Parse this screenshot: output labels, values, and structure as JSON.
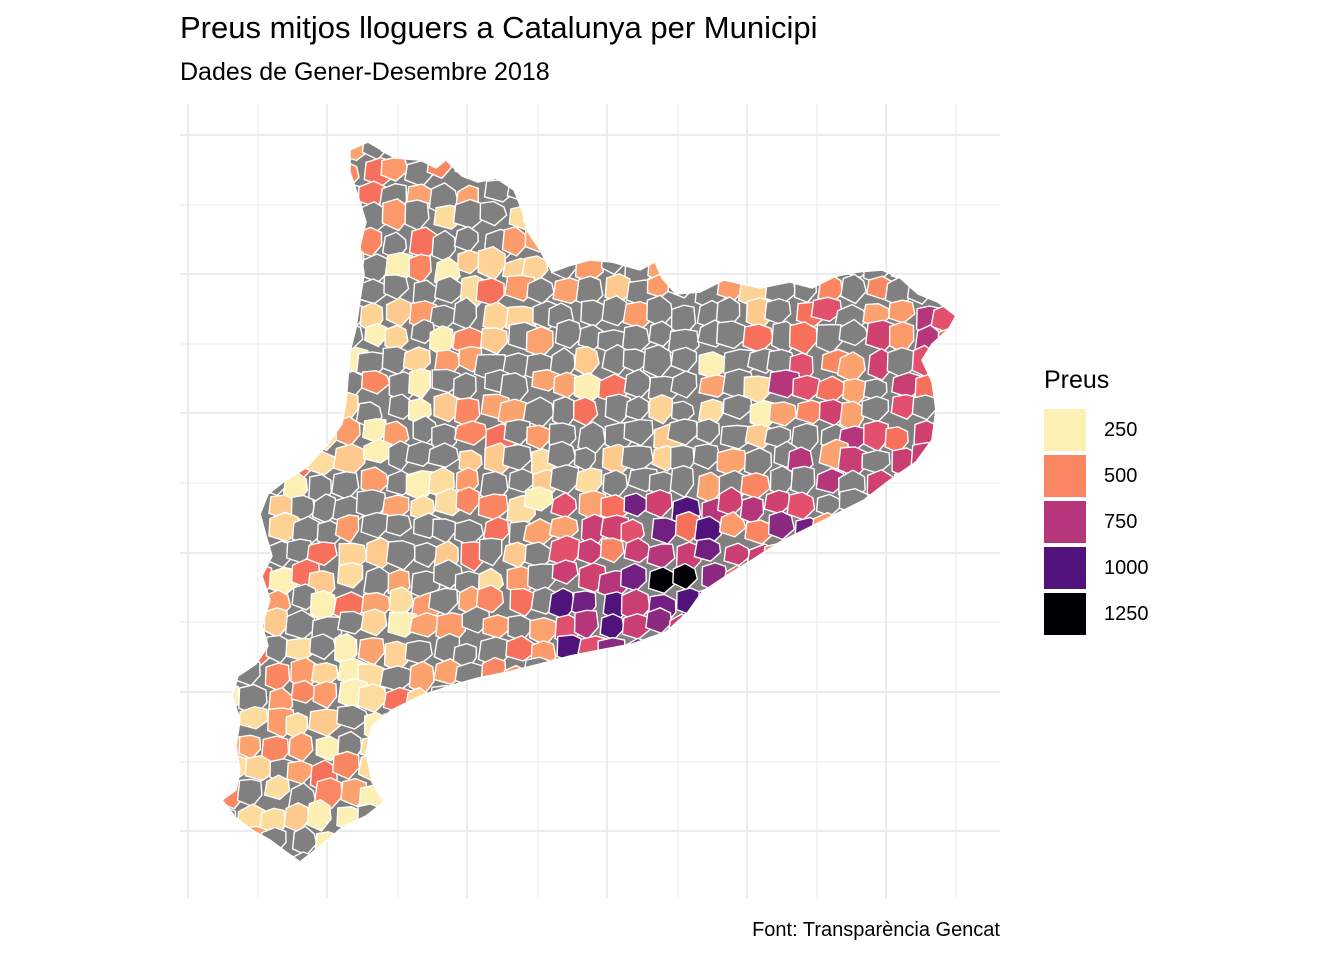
{
  "chart": {
    "title": "Preus mitjos lloguers a Catalunya per Municipi",
    "subtitle": "Dades de Gener-Desembre 2018",
    "caption": "Font: Transparència Gencat"
  },
  "legend": {
    "title": "Preus",
    "items": [
      {
        "label": "250",
        "color": "#FCF0B5"
      },
      {
        "label": "500",
        "color": "#FB8762"
      },
      {
        "label": "750",
        "color": "#B5367A"
      },
      {
        "label": "1000",
        "color": "#50127B"
      },
      {
        "label": "1250",
        "color": "#000004"
      }
    ]
  },
  "chart_data": {
    "type": "choropleth",
    "title": "Preus mitjos lloguers a Catalunya per Municipi",
    "subtitle": "Dades de Gener-Desembre 2018",
    "fill_variable": "Preus",
    "scale": "magma (reversed)",
    "legend_breaks": [
      250,
      500,
      750,
      1000,
      1250
    ],
    "missing_color": "#808080",
    "grid": true
  }
}
